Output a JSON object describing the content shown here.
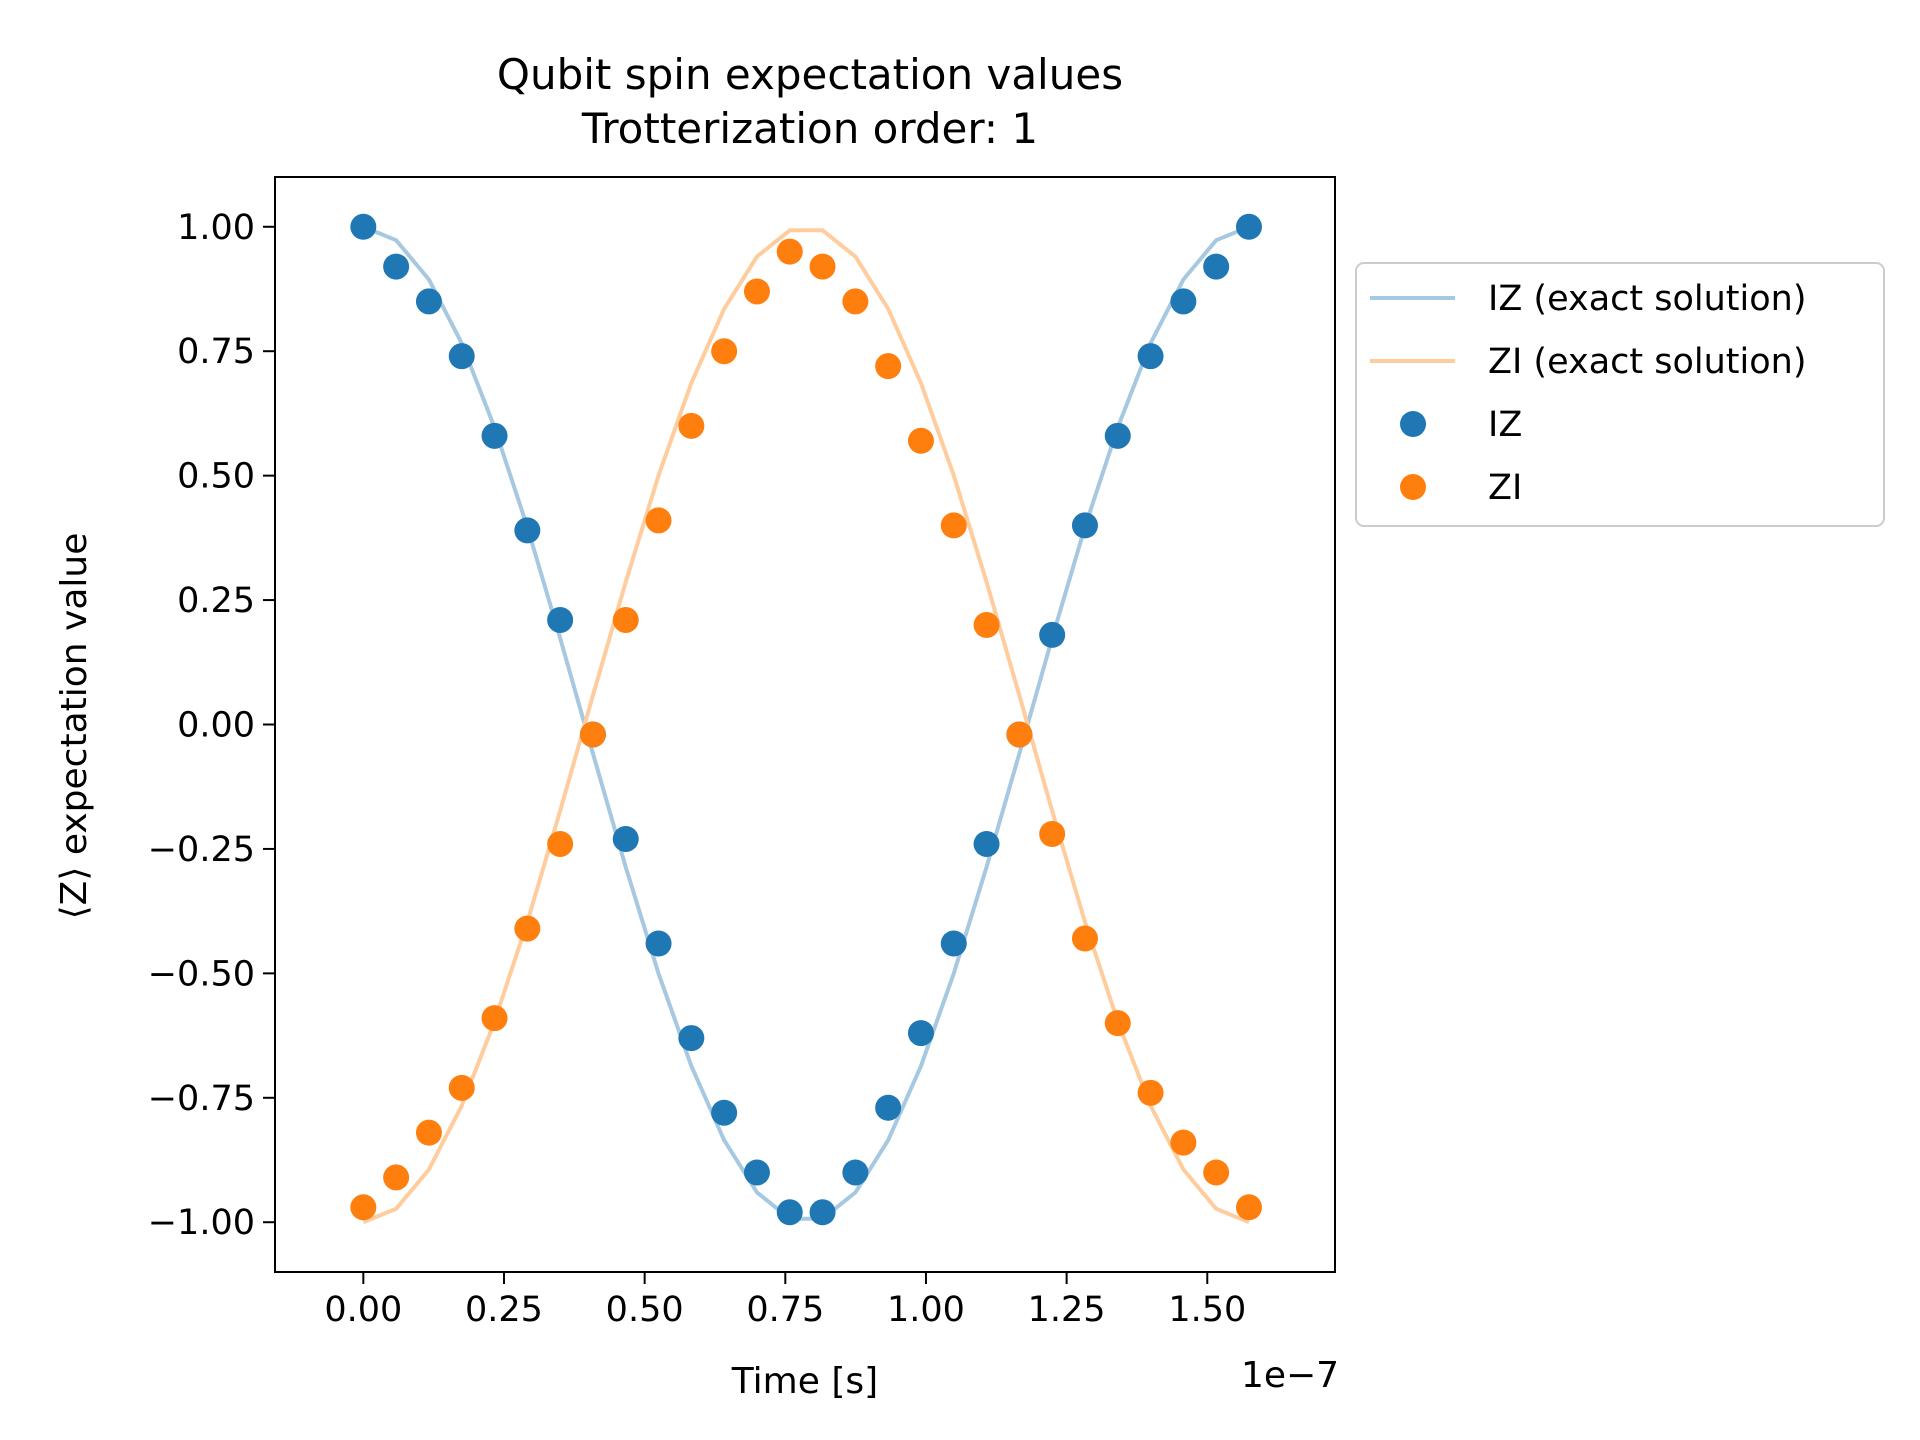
{
  "chart_data": {
    "type": "scatter",
    "title": "Qubit spin expectation values",
    "subtitle": "Trotterization order: 1",
    "xlabel": "Time [s]",
    "ylabel": "⟨Z⟩ expectation value",
    "x_offset_text": "1e−7",
    "xlim": [
      -1.57e-08,
      1.727e-07
    ],
    "ylim": [
      -1.1,
      1.1
    ],
    "x_ticks": [
      0,
      2.5e-08,
      5e-08,
      7.5e-08,
      1e-07,
      1.25e-07,
      1.5e-07
    ],
    "x_tick_labels": [
      "0.00",
      "0.25",
      "0.50",
      "0.75",
      "1.00",
      "1.25",
      "1.50"
    ],
    "y_ticks": [
      1,
      0.75,
      0.5,
      0.25,
      0,
      -0.25,
      -0.5,
      -0.75,
      -1
    ],
    "y_tick_labels": [
      "1.00",
      "0.75",
      "0.50",
      "0.25",
      "0.00",
      "−0.25",
      "−0.50",
      "−0.75",
      "−1.00"
    ],
    "grid": false,
    "legend_position": "outside right, top",
    "legend": [
      {
        "label": "IZ (exact solution)",
        "kind": "line",
        "color": "#a6c8e0"
      },
      {
        "label": "ZI (exact solution)",
        "kind": "line",
        "color": "#ffcc9d"
      },
      {
        "label": "IZ",
        "kind": "marker",
        "color": "#1f77b4"
      },
      {
        "label": "ZI",
        "kind": "marker",
        "color": "#ff7f0e"
      }
    ],
    "series": [
      {
        "name": "IZ (exact solution)",
        "kind": "line",
        "color": "#a6c8e0",
        "x": [
          0,
          5.83e-09,
          1.166e-08,
          1.749e-08,
          2.332e-08,
          2.915e-08,
          3.498e-08,
          4.081e-08,
          4.664e-08,
          5.247e-08,
          5.83e-08,
          6.413e-08,
          6.996e-08,
          7.579e-08,
          8.162e-08,
          8.745e-08,
          9.328e-08,
          9.911e-08,
          1.0494e-07,
          1.1077e-07,
          1.166e-07,
          1.2243e-07,
          1.2826e-07,
          1.3409e-07,
          1.3992e-07,
          1.4575e-07,
          1.5158e-07,
          1.5741e-07
        ],
        "y": [
          1.0,
          0.973,
          0.894,
          0.766,
          0.597,
          0.397,
          0.174,
          -0.058,
          -0.286,
          -0.5,
          -0.686,
          -0.835,
          -0.94,
          -0.993,
          -0.993,
          -0.94,
          -0.835,
          -0.686,
          -0.5,
          -0.286,
          -0.058,
          0.174,
          0.397,
          0.597,
          0.766,
          0.894,
          0.973,
          1.0
        ]
      },
      {
        "name": "ZI (exact solution)",
        "kind": "line",
        "color": "#ffcc9d",
        "x": [
          0,
          5.83e-09,
          1.166e-08,
          1.749e-08,
          2.332e-08,
          2.915e-08,
          3.498e-08,
          4.081e-08,
          4.664e-08,
          5.247e-08,
          5.83e-08,
          6.413e-08,
          6.996e-08,
          7.579e-08,
          8.162e-08,
          8.745e-08,
          9.328e-08,
          9.911e-08,
          1.0494e-07,
          1.1077e-07,
          1.166e-07,
          1.2243e-07,
          1.2826e-07,
          1.3409e-07,
          1.3992e-07,
          1.4575e-07,
          1.5158e-07,
          1.5741e-07
        ],
        "y": [
          -1.0,
          -0.973,
          -0.894,
          -0.766,
          -0.597,
          -0.397,
          -0.174,
          0.058,
          0.286,
          0.5,
          0.686,
          0.835,
          0.94,
          0.993,
          0.993,
          0.94,
          0.835,
          0.686,
          0.5,
          0.286,
          0.058,
          -0.174,
          -0.397,
          -0.597,
          -0.766,
          -0.894,
          -0.973,
          -1.0
        ]
      },
      {
        "name": "IZ",
        "kind": "marker",
        "color": "#1f77b4",
        "x": [
          0,
          5.83e-09,
          1.166e-08,
          1.749e-08,
          2.332e-08,
          2.915e-08,
          3.498e-08,
          4.081e-08,
          4.664e-08,
          5.247e-08,
          5.83e-08,
          6.413e-08,
          6.996e-08,
          7.579e-08,
          8.162e-08,
          8.745e-08,
          9.328e-08,
          9.911e-08,
          1.0494e-07,
          1.1077e-07,
          1.166e-07,
          1.2243e-07,
          1.2826e-07,
          1.3409e-07,
          1.3992e-07,
          1.4575e-07,
          1.5158e-07,
          1.5741e-07
        ],
        "y": [
          1.0,
          0.92,
          0.85,
          0.74,
          0.58,
          0.39,
          0.21,
          -0.02,
          -0.23,
          -0.44,
          -0.63,
          -0.78,
          -0.9,
          -0.98,
          -0.98,
          -0.9,
          -0.77,
          -0.62,
          -0.44,
          -0.24,
          -0.02,
          0.18,
          0.4,
          0.58,
          0.74,
          0.85,
          0.92,
          1.0
        ]
      },
      {
        "name": "ZI",
        "kind": "marker",
        "color": "#ff7f0e",
        "x": [
          0,
          5.83e-09,
          1.166e-08,
          1.749e-08,
          2.332e-08,
          2.915e-08,
          3.498e-08,
          4.081e-08,
          4.664e-08,
          5.247e-08,
          5.83e-08,
          6.413e-08,
          6.996e-08,
          7.579e-08,
          8.162e-08,
          8.745e-08,
          9.328e-08,
          9.911e-08,
          1.0494e-07,
          1.1077e-07,
          1.166e-07,
          1.2243e-07,
          1.2826e-07,
          1.3409e-07,
          1.3992e-07,
          1.4575e-07,
          1.5158e-07,
          1.5741e-07
        ],
        "y": [
          -0.97,
          -0.91,
          -0.82,
          -0.73,
          -0.59,
          -0.41,
          -0.24,
          -0.02,
          0.21,
          0.41,
          0.6,
          0.75,
          0.87,
          0.95,
          0.92,
          0.85,
          0.72,
          0.57,
          0.4,
          0.2,
          -0.02,
          -0.22,
          -0.43,
          -0.6,
          -0.74,
          -0.84,
          -0.9,
          -0.97
        ]
      }
    ]
  }
}
